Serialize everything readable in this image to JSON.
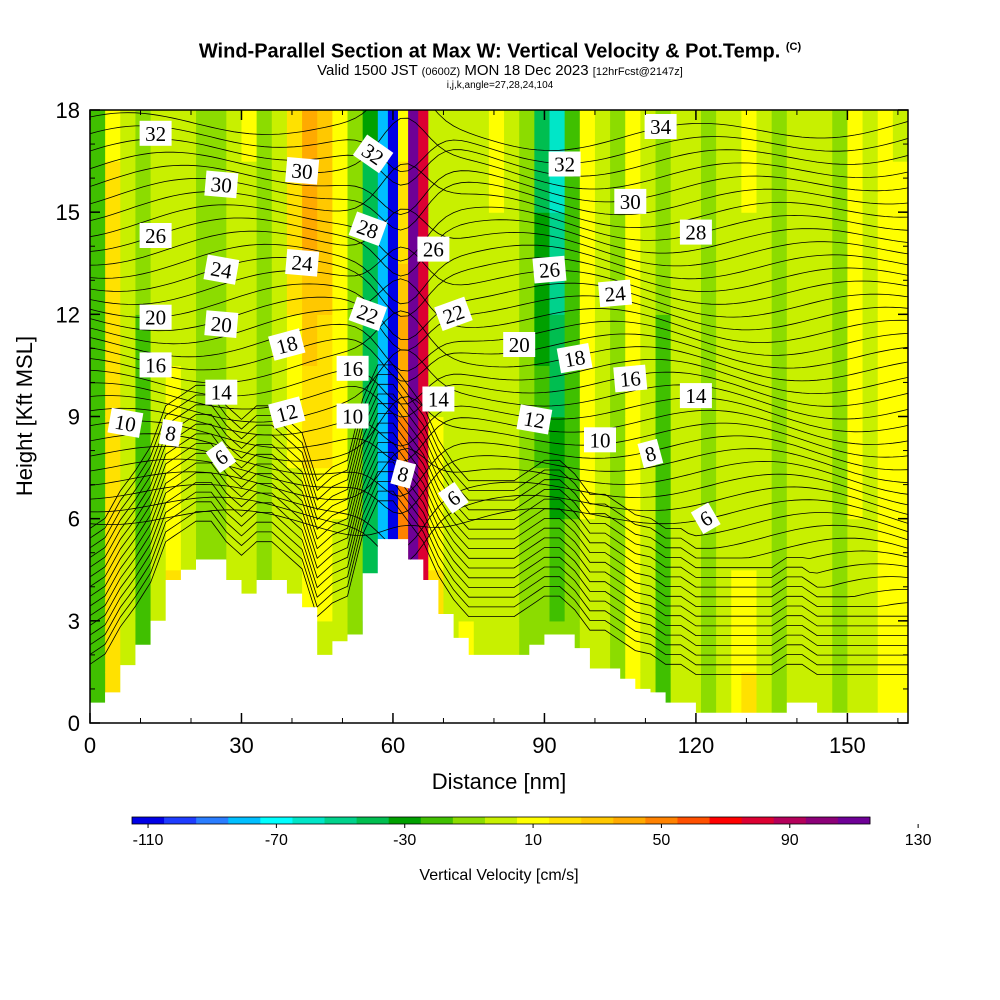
{
  "title": {
    "main": "Wind-Parallel Section at Max W: Vertical Velocity & Pot.Temp.",
    "copyright": "(C)",
    "valid": "Valid 1500 JST",
    "valid_utc": "(0600Z)",
    "valid_date": "MON 18 Dec 2023",
    "forecast": "[12hrFcst@2147z]",
    "indices": "i,j,k,angle=27,28,24,104"
  },
  "chart_data": {
    "type": "heatmap",
    "xlabel": "Distance [nm]",
    "ylabel": "Height [Kft MSL]",
    "xlim": [
      0,
      162
    ],
    "ylim": [
      0,
      18
    ],
    "x_ticks": [
      "0",
      "30",
      "60",
      "90",
      "120",
      "150"
    ],
    "y_ticks": [
      "0",
      "3",
      "6",
      "9",
      "12",
      "15",
      "18"
    ],
    "colorbar": {
      "title": "Vertical Velocity [cm/s]",
      "labels": [
        "-110",
        "-70",
        "-30",
        "10",
        "50",
        "90",
        "130"
      ],
      "colors": [
        "#0000e6",
        "#1e3cff",
        "#2a7dff",
        "#00bfff",
        "#00ffff",
        "#00e6c8",
        "#00d28c",
        "#00be50",
        "#00a000",
        "#40c000",
        "#8cdc00",
        "#c8f000",
        "#ffff00",
        "#ffe100",
        "#ffc800",
        "#ffaa00",
        "#ff8200",
        "#ff5000",
        "#ff0000",
        "#dc0032",
        "#b4005a",
        "#8c0078",
        "#6e0096"
      ]
    },
    "terrain": [
      [
        0,
        0.6
      ],
      [
        3,
        0.9
      ],
      [
        6,
        1.7
      ],
      [
        9,
        2.3
      ],
      [
        12,
        3.0
      ],
      [
        15,
        4.2
      ],
      [
        18,
        4.5
      ],
      [
        21,
        4.8
      ],
      [
        24,
        4.8
      ],
      [
        27,
        4.2
      ],
      [
        30,
        3.8
      ],
      [
        33,
        4.2
      ],
      [
        36,
        4.2
      ],
      [
        39,
        3.8
      ],
      [
        42,
        3.4
      ],
      [
        45,
        2.0
      ],
      [
        48,
        2.4
      ],
      [
        51,
        2.6
      ],
      [
        54,
        4.4
      ],
      [
        57,
        5.4
      ],
      [
        60,
        5.4
      ],
      [
        63,
        4.8
      ],
      [
        66,
        4.2
      ],
      [
        69,
        3.2
      ],
      [
        72,
        2.5
      ],
      [
        75,
        2.0
      ],
      [
        78,
        2.0
      ],
      [
        81,
        2.0
      ],
      [
        84,
        2.0
      ],
      [
        87,
        2.3
      ],
      [
        90,
        2.6
      ],
      [
        93,
        2.6
      ],
      [
        96,
        2.2
      ],
      [
        99,
        1.6
      ],
      [
        102,
        1.6
      ],
      [
        105,
        1.3
      ],
      [
        108,
        1.0
      ],
      [
        111,
        0.9
      ],
      [
        114,
        0.6
      ],
      [
        117,
        0.6
      ],
      [
        120,
        0.3
      ],
      [
        123,
        0.3
      ],
      [
        126,
        0.3
      ],
      [
        129,
        0.3
      ],
      [
        132,
        0.3
      ],
      [
        135,
        0.3
      ],
      [
        138,
        0.6
      ],
      [
        141,
        0.6
      ],
      [
        144,
        0.3
      ],
      [
        147,
        0.3
      ],
      [
        150,
        0.3
      ],
      [
        153,
        0.3
      ],
      [
        156,
        0.3
      ],
      [
        159,
        0.3
      ],
      [
        162,
        0.3
      ]
    ],
    "vertical_velocity_bands": [
      {
        "x": 0,
        "w": -20
      },
      {
        "x": 3,
        "w": 30
      },
      {
        "x": 6,
        "w": 5
      },
      {
        "x": 9,
        "w": -15
      },
      {
        "x": 12,
        "w": 10
      },
      {
        "x": 15,
        "w": 25
      },
      {
        "x": 18,
        "w": 10
      },
      {
        "x": 21,
        "w": -20
      },
      {
        "x": 24,
        "w": -5
      },
      {
        "x": 27,
        "w": 25
      },
      {
        "x": 30,
        "w": 20
      },
      {
        "x": 33,
        "w": -10
      },
      {
        "x": 36,
        "w": 10
      },
      {
        "x": 39,
        "w": 30
      },
      {
        "x": 42,
        "w": 45
      },
      {
        "x": 45,
        "w": 35
      },
      {
        "x": 48,
        "w": 15
      },
      {
        "x": 51,
        "w": -5
      },
      {
        "x": 54,
        "w": -40
      },
      {
        "x": 57,
        "w": -75
      },
      {
        "x": 59,
        "w": -105
      },
      {
        "x": 61,
        "w": 60
      },
      {
        "x": 63,
        "w": 110
      },
      {
        "x": 65,
        "w": 80
      },
      {
        "x": 67,
        "w": 30
      },
      {
        "x": 70,
        "w": 10
      },
      {
        "x": 73,
        "w": 20
      },
      {
        "x": 76,
        "w": 5
      },
      {
        "x": 79,
        "w": 25
      },
      {
        "x": 82,
        "w": 10
      },
      {
        "x": 85,
        "w": -10
      },
      {
        "x": 88,
        "w": -35
      },
      {
        "x": 91,
        "w": -55
      },
      {
        "x": 94,
        "w": -20
      },
      {
        "x": 97,
        "w": 15
      },
      {
        "x": 100,
        "w": 10
      },
      {
        "x": 103,
        "w": -10
      },
      {
        "x": 106,
        "w": 20
      },
      {
        "x": 109,
        "w": 10
      },
      {
        "x": 112,
        "w": -15
      },
      {
        "x": 115,
        "w": 5
      },
      {
        "x": 118,
        "w": 10
      },
      {
        "x": 121,
        "w": -5
      },
      {
        "x": 124,
        "w": 5
      },
      {
        "x": 127,
        "w": 25
      },
      {
        "x": 129,
        "w": 45
      },
      {
        "x": 132,
        "w": 15
      },
      {
        "x": 135,
        "w": -5
      },
      {
        "x": 138,
        "w": 10
      },
      {
        "x": 141,
        "w": 0
      },
      {
        "x": 144,
        "w": 10
      },
      {
        "x": 147,
        "w": -5
      },
      {
        "x": 150,
        "w": 15
      },
      {
        "x": 153,
        "w": 5
      },
      {
        "x": 156,
        "w": 20
      },
      {
        "x": 159,
        "w": 15
      }
    ],
    "theta_contour_labels": [
      {
        "text": "32",
        "x": 13,
        "y": 17.3,
        "rot": 0
      },
      {
        "text": "30",
        "x": 26,
        "y": 15.8,
        "rot": 5
      },
      {
        "text": "30",
        "x": 42,
        "y": 16.2,
        "rot": 5
      },
      {
        "text": "32",
        "x": 56,
        "y": 16.7,
        "rot": 35
      },
      {
        "text": "34",
        "x": 113,
        "y": 17.5,
        "rot": 0
      },
      {
        "text": "32",
        "x": 94,
        "y": 16.4,
        "rot": 0
      },
      {
        "text": "30",
        "x": 107,
        "y": 15.3,
        "rot": 0
      },
      {
        "text": "28",
        "x": 55,
        "y": 14.5,
        "rot": 20
      },
      {
        "text": "28",
        "x": 120,
        "y": 14.4,
        "rot": 0
      },
      {
        "text": "26",
        "x": 13,
        "y": 14.3,
        "rot": 0
      },
      {
        "text": "26",
        "x": 68,
        "y": 13.9,
        "rot": 0
      },
      {
        "text": "26",
        "x": 91,
        "y": 13.3,
        "rot": -5
      },
      {
        "text": "24",
        "x": 26,
        "y": 13.3,
        "rot": 10
      },
      {
        "text": "24",
        "x": 42,
        "y": 13.5,
        "rot": 5
      },
      {
        "text": "24",
        "x": 104,
        "y": 12.6,
        "rot": -5
      },
      {
        "text": "22",
        "x": 55,
        "y": 12.0,
        "rot": 20
      },
      {
        "text": "22",
        "x": 72,
        "y": 12.0,
        "rot": -20
      },
      {
        "text": "20",
        "x": 13,
        "y": 11.9,
        "rot": 0
      },
      {
        "text": "20",
        "x": 26,
        "y": 11.7,
        "rot": 5
      },
      {
        "text": "20",
        "x": 85,
        "y": 11.1,
        "rot": 0
      },
      {
        "text": "18",
        "x": 39,
        "y": 11.1,
        "rot": -15
      },
      {
        "text": "18",
        "x": 96,
        "y": 10.7,
        "rot": -10
      },
      {
        "text": "16",
        "x": 13,
        "y": 10.5,
        "rot": 0
      },
      {
        "text": "16",
        "x": 52,
        "y": 10.4,
        "rot": 0
      },
      {
        "text": "16",
        "x": 107,
        "y": 10.1,
        "rot": -5
      },
      {
        "text": "14",
        "x": 26,
        "y": 9.7,
        "rot": 0
      },
      {
        "text": "14",
        "x": 69,
        "y": 9.5,
        "rot": 0
      },
      {
        "text": "14",
        "x": 120,
        "y": 9.6,
        "rot": 0
      },
      {
        "text": "12",
        "x": 39,
        "y": 9.1,
        "rot": -15
      },
      {
        "text": "12",
        "x": 88,
        "y": 8.9,
        "rot": 10
      },
      {
        "text": "10",
        "x": 7,
        "y": 8.8,
        "rot": 10
      },
      {
        "text": "10",
        "x": 52,
        "y": 9.0,
        "rot": 0
      },
      {
        "text": "10",
        "x": 101,
        "y": 8.3,
        "rot": 0
      },
      {
        "text": "8",
        "x": 16,
        "y": 8.5,
        "rot": 10
      },
      {
        "text": "8",
        "x": 62,
        "y": 7.3,
        "rot": 15
      },
      {
        "text": "8",
        "x": 111,
        "y": 7.9,
        "rot": -15
      },
      {
        "text": "6",
        "x": 26,
        "y": 7.8,
        "rot": -35
      },
      {
        "text": "6",
        "x": 72,
        "y": 6.6,
        "rot": -35
      },
      {
        "text": "6",
        "x": 122,
        "y": 6.0,
        "rot": -30
      }
    ]
  }
}
